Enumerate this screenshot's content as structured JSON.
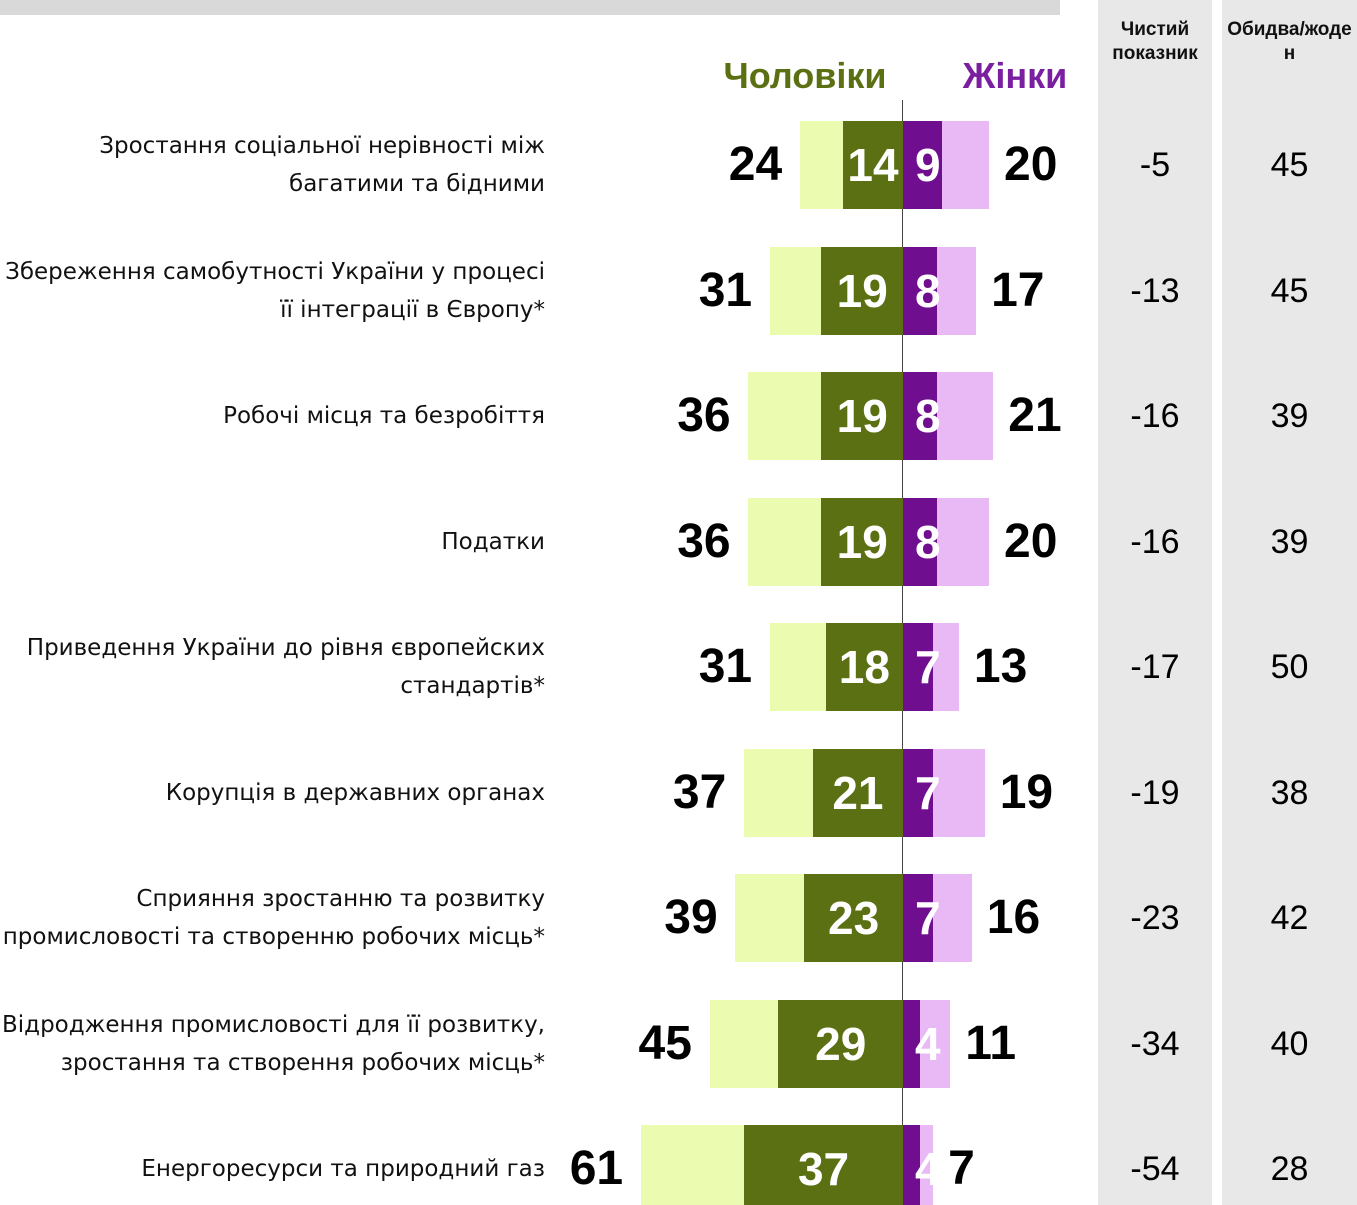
{
  "chart_data": {
    "type": "diverging-bar",
    "categories": [
      "Зростання соціальної нерівності між багатими та бідними",
      "Збереження самобутності України у процесі її інтеграції в Європу*",
      "Робочі місця та безробіття",
      "Податки",
      "Приведення України до рівня європейских стандартів*",
      "Корупція в державних органах",
      "Сприяння зростанню та розвитку промисловості та створенню робочих місць*",
      "Відродження промисловості для її розвитку, зростання та створення робочих місць*",
      "Енергоресурси та природний газ"
    ],
    "groups": [
      {
        "name": "Чоловіки",
        "side": "left",
        "color": "#5b7012",
        "total_color": "#ebfcb0",
        "strong_color": "#5b7012",
        "total": [
          24,
          31,
          36,
          36,
          31,
          37,
          39,
          45,
          61
        ],
        "strong": [
          14,
          19,
          19,
          19,
          18,
          21,
          23,
          29,
          37
        ]
      },
      {
        "name": "Жінки",
        "side": "right",
        "color": "#7a1fa0",
        "total_color": "#e8b9f5",
        "strong_color": "#6f0e8f",
        "total": [
          20,
          17,
          21,
          20,
          13,
          19,
          16,
          11,
          7
        ],
        "strong": [
          9,
          8,
          8,
          8,
          7,
          7,
          7,
          4,
          4
        ]
      }
    ],
    "columns": [
      {
        "header": "Чистий показник",
        "values": [
          -5,
          -13,
          -16,
          -16,
          -17,
          -19,
          -23,
          -34,
          -54
        ]
      },
      {
        "header": "Обидва/жоден",
        "values": [
          45,
          45,
          39,
          39,
          50,
          38,
          42,
          40,
          28
        ]
      }
    ]
  }
}
